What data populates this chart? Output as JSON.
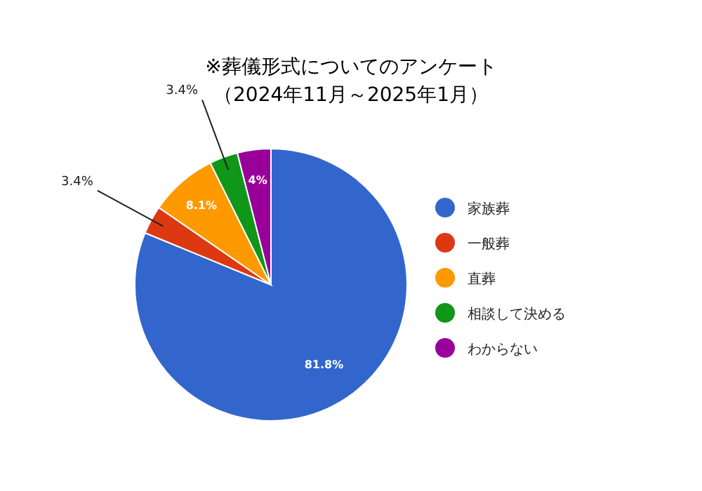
{
  "chart_data": {
    "type": "pie",
    "title": "※葬儀形式についてのアンケート",
    "subtitle": "（2024年11月～2025年1月）",
    "categories": [
      "家族葬",
      "一般葬",
      "直葬",
      "相談して決める",
      "わからない"
    ],
    "values": [
      81.8,
      3.4,
      8.1,
      3.4,
      4
    ],
    "value_labels": [
      "81.8%",
      "3.4%",
      "8.1%",
      "3.4%",
      "4%"
    ],
    "colors": [
      "#3366cc",
      "#dc3912",
      "#ff9900",
      "#109618",
      "#990099"
    ],
    "legend": "right"
  }
}
